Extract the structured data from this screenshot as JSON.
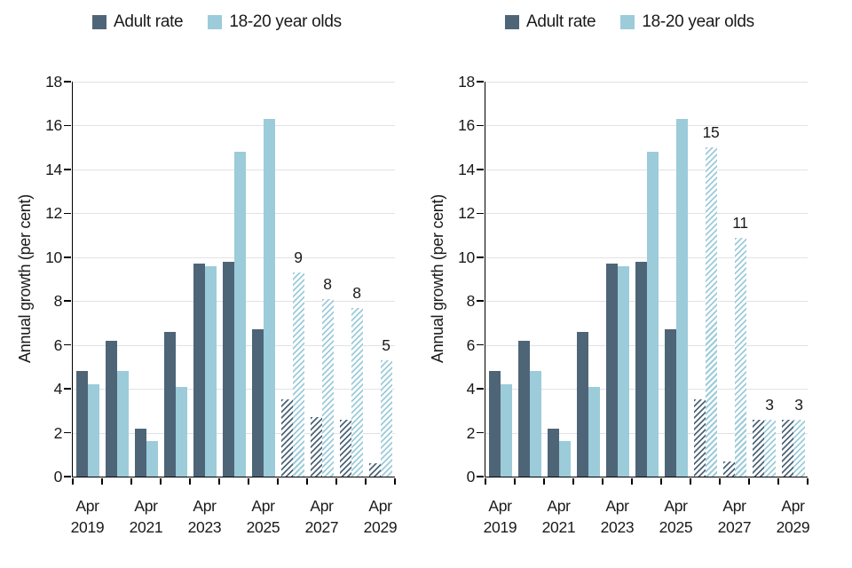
{
  "colors": {
    "adult_rate": "#4e6578",
    "youth_rate": "#9ccbda",
    "gridline": "#e2e2e2",
    "axis": "#000000",
    "text": "#1a1a1a",
    "hatch_background": "#ffffff"
  },
  "chart_data": [
    {
      "type": "bar",
      "panel": "left",
      "title": "",
      "ylabel": "Annual growth (per cent)",
      "ylim": [
        0,
        18
      ],
      "yticks": [
        0,
        2,
        4,
        6,
        8,
        10,
        12,
        14,
        16,
        18
      ],
      "grid": "horizontal",
      "legend_position": "top",
      "categories": [
        "Apr 2019",
        "Apr 2020",
        "Apr 2021",
        "Apr 2022",
        "Apr 2023",
        "Apr 2024",
        "Apr 2025",
        "Apr 2026",
        "Apr 2027",
        "Apr 2028",
        "Apr 2029"
      ],
      "xtick_labels_shown": [
        "Apr 2019",
        "Apr 2021",
        "Apr 2023",
        "Apr 2025",
        "Apr 2027",
        "Apr 2029"
      ],
      "series": [
        {
          "name": "Adult rate",
          "color": "#4e6578",
          "hatched_from_index": 7,
          "values": [
            4.8,
            6.2,
            2.2,
            6.6,
            9.7,
            9.8,
            6.7,
            3.5,
            2.7,
            2.6,
            0.6
          ],
          "point_labels": [
            null,
            null,
            null,
            null,
            null,
            null,
            null,
            null,
            null,
            null,
            null
          ]
        },
        {
          "name": "18-20 year olds",
          "color": "#9ccbda",
          "hatched_from_index": 7,
          "values": [
            4.2,
            4.8,
            1.6,
            4.1,
            9.6,
            14.8,
            16.3,
            9.3,
            8.1,
            7.7,
            5.3
          ],
          "point_labels": [
            null,
            null,
            null,
            null,
            null,
            null,
            null,
            "9",
            "8",
            "8",
            "5"
          ]
        }
      ]
    },
    {
      "type": "bar",
      "panel": "right",
      "title": "",
      "ylabel": "Annual growth (per cent)",
      "ylim": [
        0,
        18
      ],
      "yticks": [
        0,
        2,
        4,
        6,
        8,
        10,
        12,
        14,
        16,
        18
      ],
      "grid": "horizontal",
      "legend_position": "top",
      "categories": [
        "Apr 2019",
        "Apr 2020",
        "Apr 2021",
        "Apr 2022",
        "Apr 2023",
        "Apr 2024",
        "Apr 2025",
        "Apr 2026",
        "Apr 2027",
        "Apr 2028",
        "Apr 2029"
      ],
      "xtick_labels_shown": [
        "Apr 2019",
        "Apr 2021",
        "Apr 2023",
        "Apr 2025",
        "Apr 2027",
        "Apr 2029"
      ],
      "series": [
        {
          "name": "Adult rate",
          "color": "#4e6578",
          "hatched_from_index": 7,
          "values": [
            4.8,
            6.2,
            2.2,
            6.6,
            9.7,
            9.8,
            6.7,
            3.5,
            0.7,
            2.6,
            2.6
          ],
          "point_labels": [
            null,
            null,
            null,
            null,
            null,
            null,
            null,
            null,
            null,
            null,
            null
          ]
        },
        {
          "name": "18-20 year olds",
          "color": "#9ccbda",
          "hatched_from_index": 7,
          "values": [
            4.2,
            4.8,
            1.6,
            4.1,
            9.6,
            14.8,
            16.3,
            15.0,
            10.9,
            2.6,
            2.6
          ],
          "point_labels": [
            null,
            null,
            null,
            null,
            null,
            null,
            null,
            "15",
            "11",
            "3",
            "3"
          ]
        }
      ]
    }
  ]
}
